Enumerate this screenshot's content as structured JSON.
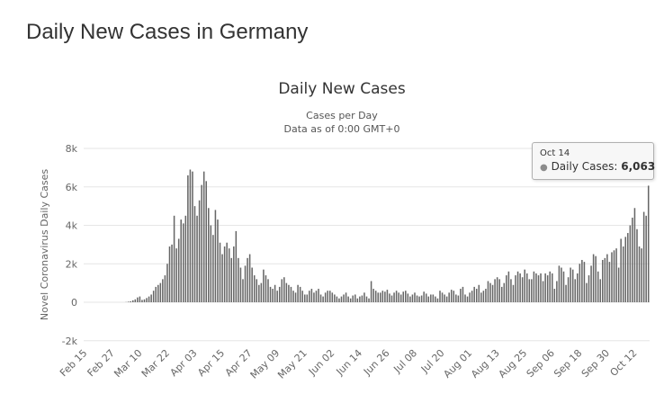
{
  "page": {
    "title": "Daily New Cases in Germany"
  },
  "chart_data": {
    "type": "bar",
    "title": "Daily New Cases",
    "subtitle": [
      "Cases per Day",
      "Data as of 0:00 GMT+0"
    ],
    "ylabel": "Novel Coronavirus Daily Cases",
    "xlabel": "",
    "ylim": [
      -2000,
      8000
    ],
    "y_ticks": [
      -2000,
      0,
      2000,
      4000,
      6000,
      8000
    ],
    "y_tick_labels": [
      "-2k",
      "0",
      "2k",
      "4k",
      "6k",
      "8k"
    ],
    "x_start": "Feb 15",
    "x_tick_labels": [
      "Feb 15",
      "Feb 27",
      "Mar 10",
      "Mar 22",
      "Apr 03",
      "Apr 15",
      "Apr 27",
      "May 09",
      "May 21",
      "Jun 02",
      "Jun 14",
      "Jun 26",
      "Jul 08",
      "Jul 20",
      "Aug 01",
      "Aug 13",
      "Aug 25",
      "Sep 06",
      "Sep 18",
      "Sep 30",
      "Oct 12"
    ],
    "grid": true,
    "legend": "none",
    "bar_color": "#666666",
    "series": [
      {
        "name": "Daily Cases",
        "values": [
          0,
          0,
          0,
          0,
          0,
          0,
          0,
          0,
          0,
          0,
          0,
          0,
          0,
          0,
          0,
          0,
          0,
          0,
          10,
          30,
          50,
          100,
          150,
          250,
          300,
          120,
          150,
          220,
          300,
          400,
          600,
          800,
          900,
          1000,
          1200,
          1400,
          2000,
          2900,
          3000,
          4500,
          2800,
          3300,
          4300,
          4100,
          4500,
          6600,
          6900,
          6800,
          5000,
          4500,
          5300,
          6100,
          6800,
          6300,
          4900,
          4000,
          3500,
          4800,
          4300,
          3100,
          2500,
          2900,
          3100,
          2800,
          2300,
          2900,
          3700,
          2300,
          1800,
          1200,
          1900,
          2300,
          2500,
          1800,
          1400,
          1200,
          900,
          1000,
          1700,
          1400,
          1200,
          800,
          700,
          900,
          600,
          800,
          1200,
          1300,
          1000,
          900,
          800,
          600,
          500,
          900,
          800,
          600,
          400,
          400,
          600,
          700,
          500,
          600,
          700,
          400,
          300,
          500,
          600,
          600,
          500,
          400,
          300,
          200,
          300,
          400,
          500,
          300,
          200,
          350,
          400,
          200,
          300,
          350,
          500,
          300,
          200,
          1100,
          700,
          600,
          500,
          500,
          600,
          550,
          650,
          450,
          350,
          500,
          600,
          500,
          400,
          550,
          600,
          450,
          300,
          400,
          500,
          350,
          300,
          350,
          550,
          450,
          300,
          400,
          400,
          300,
          200,
          600,
          500,
          400,
          300,
          500,
          650,
          600,
          400,
          350,
          700,
          800,
          400,
          300,
          500,
          600,
          800,
          700,
          900,
          500,
          600,
          700,
          1100,
          1000,
          900,
          1200,
          1300,
          1200,
          800,
          1000,
          1400,
          1600,
          1200,
          900,
          1400,
          1600,
          1500,
          1300,
          1700,
          1500,
          1200,
          1200,
          1600,
          1500,
          1400,
          1500,
          1100,
          1500,
          1400,
          1600,
          1500,
          700,
          1100,
          1900,
          1800,
          1600,
          900,
          1300,
          1800,
          1700,
          1200,
          1500,
          2000,
          2200,
          2100,
          1000,
          1400,
          1900,
          2500,
          2400,
          1600,
          1200,
          2200,
          2300,
          2500,
          2100,
          2600,
          2700,
          2800,
          1800,
          3300,
          2900,
          3400,
          3600,
          4000,
          4400,
          4900,
          3800,
          2900,
          2800,
          4700,
          4500,
          6063
        ]
      }
    ]
  },
  "tooltip": {
    "date": "Oct 14",
    "label": "Daily Cases: ",
    "value": "6,063",
    "dot": "●"
  }
}
